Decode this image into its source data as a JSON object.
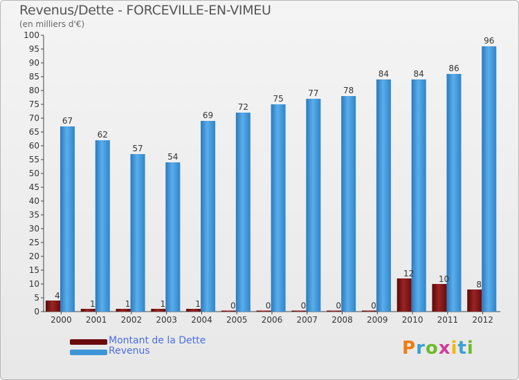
{
  "header": {
    "title": "Revenus/Dette - FORCEVILLE-EN-VIMEU",
    "subtitle": "(en milliers d'€)"
  },
  "logo": {
    "text": "Proxiti",
    "letters": [
      "P",
      "r",
      "o",
      "x",
      "i",
      "t",
      "i"
    ],
    "colors": [
      "#f07c10",
      "#3aa0d8",
      "#6dbb2a",
      "#d63a9b",
      "#f2b705",
      "#3aa0d8",
      "#6dbb2a"
    ]
  },
  "chart_data": {
    "type": "bar",
    "title": "Revenus/Dette - FORCEVILLE-EN-VIMEU",
    "subtitle": "(en milliers d'€)",
    "categories": [
      "2000",
      "2001",
      "2002",
      "2003",
      "2004",
      "2005",
      "2006",
      "2007",
      "2008",
      "2009",
      "2010",
      "2011",
      "2012"
    ],
    "series": [
      {
        "name": "Montant de la Dette",
        "color": "#7a1010",
        "values": [
          4,
          1,
          1,
          1,
          1,
          0,
          0,
          0,
          0,
          0,
          12,
          10,
          8
        ]
      },
      {
        "name": "Revenus",
        "color": "#3d95d8",
        "values": [
          67,
          62,
          57,
          54,
          69,
          72,
          75,
          77,
          78,
          84,
          84,
          86,
          96
        ]
      }
    ],
    "ylim": [
      0,
      100
    ],
    "yticks": [
      0,
      5,
      10,
      15,
      20,
      25,
      30,
      35,
      40,
      45,
      50,
      55,
      60,
      65,
      70,
      75,
      80,
      85,
      90,
      95,
      100
    ],
    "grid": false,
    "legend": "bottom-left"
  }
}
